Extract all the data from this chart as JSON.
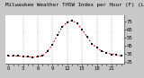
{
  "title": "Milwaukee Weather THSW Index per Hour (F) (Last 24 Hours)",
  "x_values": [
    0,
    1,
    2,
    3,
    4,
    5,
    6,
    7,
    8,
    9,
    10,
    11,
    12,
    13,
    14,
    15,
    16,
    17,
    18,
    19,
    20,
    21,
    22,
    23
  ],
  "y_values": [
    32,
    32,
    32,
    31,
    31,
    30,
    31,
    32,
    38,
    46,
    58,
    68,
    74,
    76,
    72,
    65,
    56,
    47,
    42,
    38,
    36,
    34,
    33,
    32
  ],
  "line_color": "#cc0000",
  "marker_color": "#111111",
  "background_color": "#c8c8c8",
  "plot_bg_color": "#ffffff",
  "grid_color": "#888888",
  "ytick_labels": [
    "75",
    "65",
    "55",
    "45",
    "35",
    "25"
  ],
  "ytick_values": [
    75,
    65,
    55,
    45,
    35,
    25
  ],
  "ylim": [
    22,
    82
  ],
  "xlim": [
    -0.5,
    23.5
  ],
  "title_fontsize": 4.2,
  "tick_fontsize": 3.8,
  "line_width": 0.7,
  "marker_size": 1.5,
  "dashed_vlines": [
    3,
    6,
    9,
    12,
    15,
    18,
    21
  ]
}
